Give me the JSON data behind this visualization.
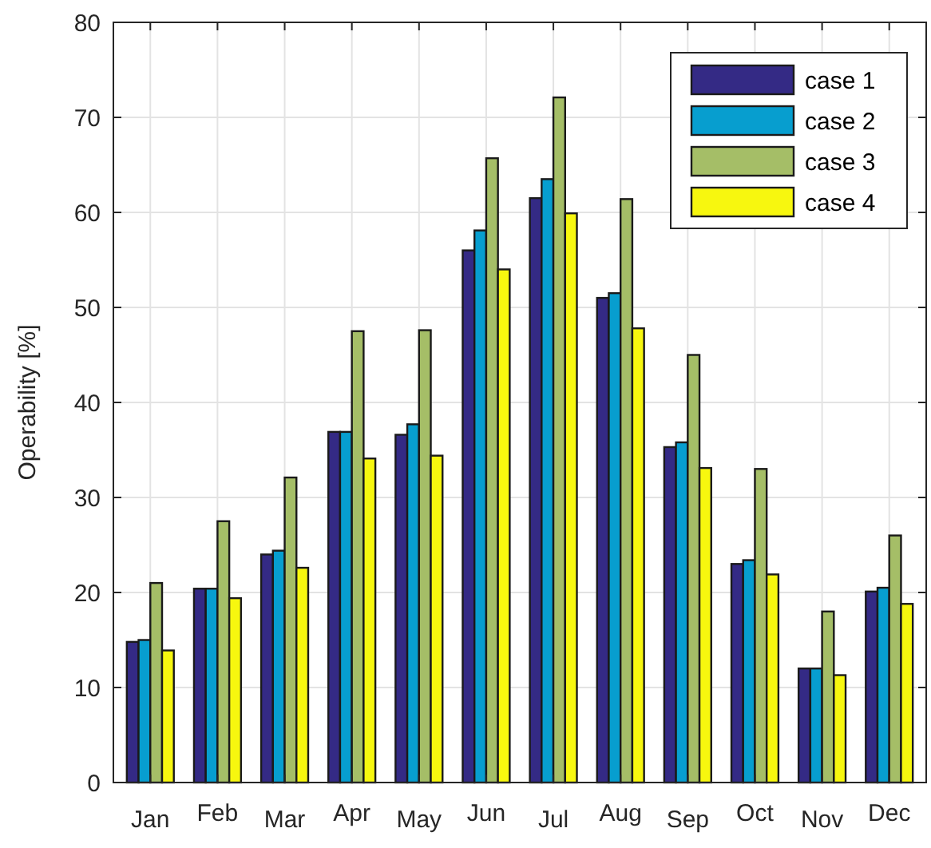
{
  "chart_data": {
    "type": "bar",
    "ylabel": "Operability [%]",
    "categories": [
      "Jan",
      "Feb",
      "Mar",
      "Apr",
      "May",
      "Jun",
      "Jul",
      "Aug",
      "Sep",
      "Oct",
      "Nov",
      "Dec"
    ],
    "series": [
      {
        "name": "case 1",
        "color": "#342a85",
        "values": [
          14.8,
          20.4,
          24,
          36.9,
          36.6,
          56,
          61.5,
          51,
          35.3,
          23,
          12,
          20.1
        ]
      },
      {
        "name": "case 2",
        "color": "#079ecf",
        "values": [
          15,
          20.4,
          24.4,
          36.9,
          37.7,
          58.1,
          63.5,
          51.5,
          35.8,
          23.4,
          12,
          20.5
        ]
      },
      {
        "name": "case 3",
        "color": "#a5be67",
        "values": [
          21,
          27.5,
          32.1,
          47.5,
          47.6,
          65.7,
          72.1,
          61.4,
          45,
          33,
          18,
          26
        ]
      },
      {
        "name": "case 4",
        "color": "#f7f70f",
        "values": [
          13.9,
          19.4,
          22.6,
          34.1,
          34.4,
          54,
          59.9,
          47.8,
          33.1,
          21.9,
          11.3,
          18.8
        ]
      }
    ],
    "ylim": [
      0,
      80
    ],
    "yticks": [
      0,
      10,
      20,
      30,
      40,
      50,
      60,
      70,
      80
    ],
    "grid": true,
    "legend": "top right"
  }
}
